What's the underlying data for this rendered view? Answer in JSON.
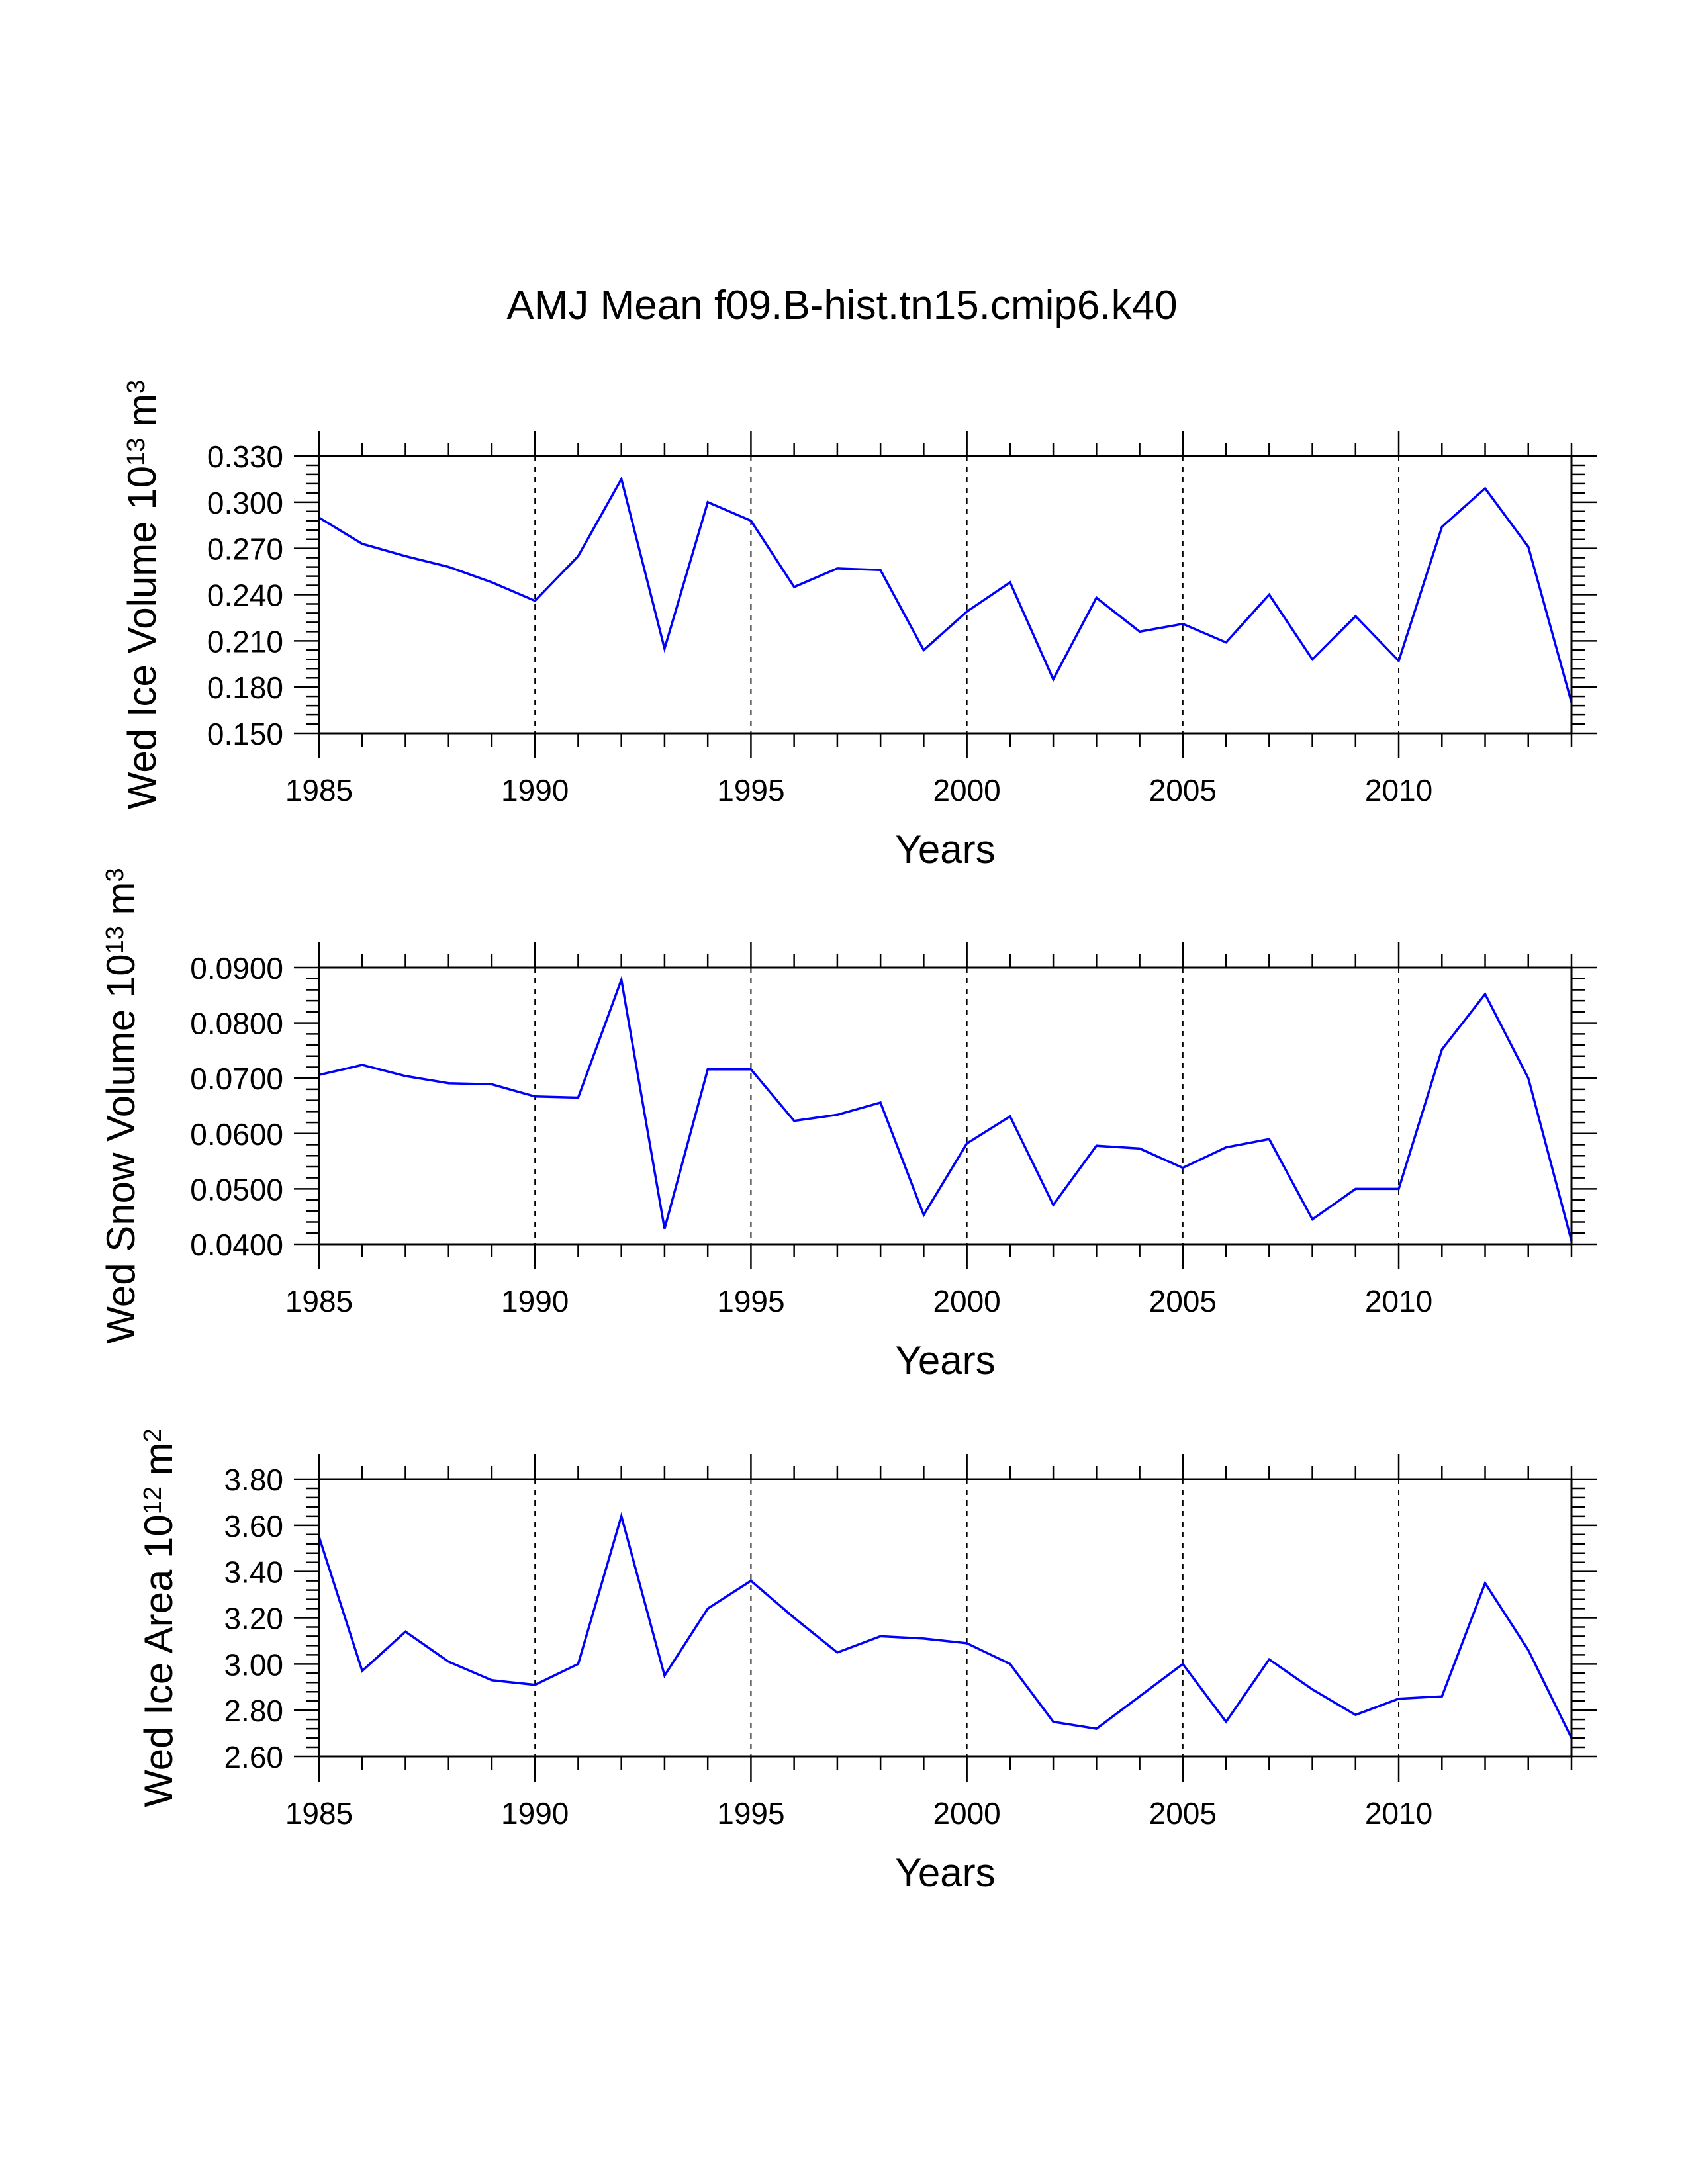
{
  "title": "AMJ Mean f09.B-hist.tn15.cmip6.k40",
  "colors": {
    "series": "#0000ff",
    "axis": "#000000",
    "background": "#ffffff"
  },
  "chart_data": [
    {
      "type": "line",
      "name": "ice-volume",
      "ylabel": {
        "prefix": "Wed Ice Volume 10",
        "exp": "13",
        "unit": " m",
        "unit_exp": "3"
      },
      "xlabel": "Years",
      "xlim": [
        1985,
        2014
      ],
      "ylim": [
        0.15,
        0.33
      ],
      "xticks": [
        1985,
        1990,
        1995,
        2000,
        2005,
        2010
      ],
      "xtick_labels": [
        "1985",
        "1990",
        "1995",
        "2000",
        "2005",
        "2010"
      ],
      "yticks": [
        0.15,
        0.18,
        0.21,
        0.24,
        0.27,
        0.3,
        0.33
      ],
      "ytick_labels": [
        "0.150",
        "0.180",
        "0.210",
        "0.240",
        "0.270",
        "0.300",
        "0.330"
      ],
      "grid": "dashed vertical at major x ticks",
      "x": [
        1985,
        1986,
        1987,
        1988,
        1989,
        1990,
        1991,
        1992,
        1993,
        1994,
        1995,
        1996,
        1997,
        1998,
        1999,
        2000,
        2001,
        2002,
        2003,
        2004,
        2005,
        2006,
        2007,
        2008,
        2009,
        2010,
        2011,
        2012,
        2013,
        2014
      ],
      "values": [
        0.29,
        0.273,
        0.265,
        0.258,
        0.248,
        0.236,
        0.265,
        0.315,
        0.205,
        0.3,
        0.288,
        0.245,
        0.257,
        0.256,
        0.204,
        0.229,
        0.248,
        0.185,
        0.238,
        0.216,
        0.221,
        0.209,
        0.24,
        0.198,
        0.226,
        0.197,
        0.284,
        0.309,
        0.271,
        0.17
      ]
    },
    {
      "type": "line",
      "name": "snow-volume",
      "ylabel": {
        "prefix": "Wed Snow Volume 10",
        "exp": "13",
        "unit": " m",
        "unit_exp": "3"
      },
      "xlabel": "Years",
      "xlim": [
        1985,
        2014
      ],
      "ylim": [
        0.04,
        0.09
      ],
      "xticks": [
        1985,
        1990,
        1995,
        2000,
        2005,
        2010
      ],
      "xtick_labels": [
        "1985",
        "1990",
        "1995",
        "2000",
        "2005",
        "2010"
      ],
      "yticks": [
        0.04,
        0.05,
        0.06,
        0.07,
        0.08,
        0.09
      ],
      "ytick_labels": [
        "0.0400",
        "0.0500",
        "0.0600",
        "0.0700",
        "0.0800",
        "0.0900"
      ],
      "grid": "dashed vertical at major x ticks",
      "x": [
        1985,
        1986,
        1987,
        1988,
        1989,
        1990,
        1991,
        1992,
        1993,
        1994,
        1995,
        1996,
        1997,
        1998,
        1999,
        2000,
        2001,
        2002,
        2003,
        2004,
        2005,
        2006,
        2007,
        2008,
        2009,
        2010,
        2011,
        2012,
        2013,
        2014
      ],
      "values": [
        0.0706,
        0.0724,
        0.0704,
        0.0691,
        0.0689,
        0.0667,
        0.0665,
        0.0878,
        0.0428,
        0.0716,
        0.0716,
        0.0623,
        0.0634,
        0.0656,
        0.0453,
        0.0582,
        0.0631,
        0.0471,
        0.0578,
        0.0573,
        0.0538,
        0.0575,
        0.059,
        0.0445,
        0.05,
        0.05,
        0.0752,
        0.0852,
        0.07,
        0.0406
      ]
    },
    {
      "type": "line",
      "name": "ice-area",
      "ylabel": {
        "prefix": "Wed Ice Area 10",
        "exp": "12",
        "unit": " m",
        "unit_exp": "2"
      },
      "xlabel": "Years",
      "xlim": [
        1985,
        2014
      ],
      "ylim": [
        2.6,
        3.8
      ],
      "xticks": [
        1985,
        1990,
        1995,
        2000,
        2005,
        2010
      ],
      "xtick_labels": [
        "1985",
        "1990",
        "1995",
        "2000",
        "2005",
        "2010"
      ],
      "yticks": [
        2.6,
        2.8,
        3.0,
        3.2,
        3.4,
        3.6,
        3.8
      ],
      "ytick_labels": [
        "2.60",
        "2.80",
        "3.00",
        "3.20",
        "3.40",
        "3.60",
        "3.80"
      ],
      "grid": "dashed vertical at major x ticks",
      "x": [
        1985,
        1986,
        1987,
        1988,
        1989,
        1990,
        1991,
        1992,
        1993,
        1994,
        1995,
        1996,
        1997,
        1998,
        1999,
        2000,
        2001,
        2002,
        2003,
        2004,
        2005,
        2006,
        2007,
        2008,
        2009,
        2010,
        2011,
        2012,
        2013,
        2014
      ],
      "values": [
        3.55,
        2.97,
        3.14,
        3.01,
        2.93,
        2.91,
        3.0,
        3.64,
        2.95,
        3.24,
        3.36,
        3.2,
        3.05,
        3.12,
        3.11,
        3.09,
        3.0,
        2.75,
        2.72,
        2.86,
        3.0,
        2.75,
        3.02,
        2.89,
        2.78,
        2.85,
        2.86,
        3.35,
        3.06,
        2.68
      ]
    }
  ]
}
